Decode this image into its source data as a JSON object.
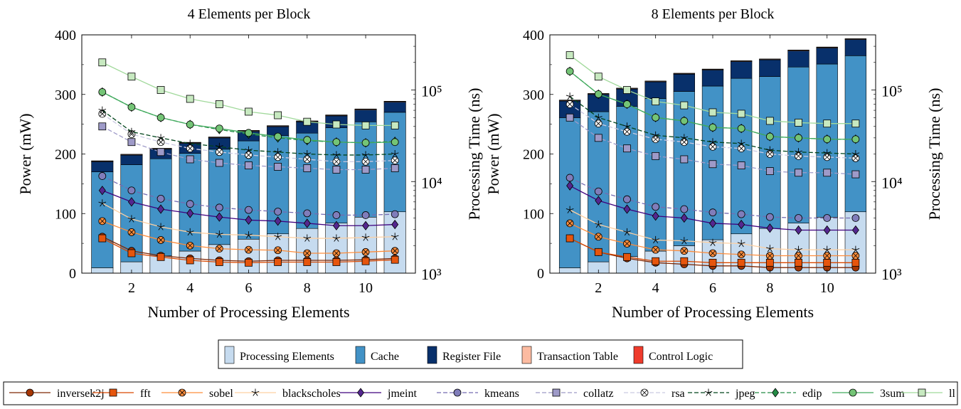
{
  "chart_data": [
    {
      "type": "bar",
      "title": "4 Elements per Block",
      "xlabel": "Number of Processing Elements",
      "ylabel": "Power (mW)",
      "y2label": "Processing Time (ns)",
      "x": [
        1,
        2,
        3,
        4,
        5,
        6,
        7,
        8,
        9,
        10,
        11
      ],
      "xticks": [
        "2",
        "4",
        "6",
        "8",
        "10"
      ],
      "xtick_values": [
        2,
        4,
        6,
        8,
        10
      ],
      "xlim": [
        0.3,
        11.7
      ],
      "ylim": [
        0,
        400
      ],
      "yticks": [
        "0",
        "100",
        "200",
        "300",
        "400"
      ],
      "y2lim_log": [
        1000,
        400000
      ],
      "y2ticks": [
        "10³",
        "10⁴",
        "10⁵"
      ],
      "y2tick_values": [
        1000,
        10000,
        100000
      ],
      "stacked_bars": [
        {
          "name": "Processing Elements",
          "values": [
            9,
            19,
            29,
            37,
            48,
            57,
            66,
            75,
            84,
            94,
            103
          ]
        },
        {
          "name": "Cache",
          "values": [
            161,
            163,
            163,
            164,
            160,
            165,
            165,
            160,
            160,
            160,
            167
          ]
        },
        {
          "name": "Register File",
          "values": [
            17,
            16,
            16,
            17,
            19,
            16,
            15,
            19,
            20,
            20,
            17
          ]
        },
        {
          "name": "Transaction Table",
          "values": [
            1,
            1,
            1,
            1,
            1,
            1,
            1,
            1,
            1,
            1,
            1
          ]
        },
        {
          "name": "Control Logic",
          "values": [
            0.6,
            0.6,
            0.6,
            0.6,
            0.6,
            0.6,
            0.6,
            0.6,
            0.6,
            0.6,
            0.6
          ]
        }
      ],
      "lines": [
        {
          "name": "inversek2j",
          "values": [
            2500,
            1750,
            1550,
            1450,
            1380,
            1350,
            1380,
            1380,
            1380,
            1400,
            1450
          ]
        },
        {
          "name": "fft",
          "values": [
            2400,
            1650,
            1500,
            1380,
            1320,
            1300,
            1320,
            1320,
            1320,
            1350,
            1400
          ]
        },
        {
          "name": "sobel",
          "values": [
            3700,
            2800,
            2300,
            2000,
            1850,
            1800,
            1780,
            1650,
            1650,
            1700,
            1750
          ]
        },
        {
          "name": "blackscholes",
          "values": [
            5800,
            3900,
            3200,
            2800,
            2650,
            2600,
            2500,
            2400,
            2400,
            2450,
            2500
          ]
        },
        {
          "name": "jmeint",
          "values": [
            8000,
            6000,
            5000,
            4500,
            4100,
            3800,
            3700,
            3500,
            3300,
            3300,
            3400
          ]
        },
        {
          "name": "kmeans",
          "values": [
            11500,
            8000,
            6500,
            5700,
            5200,
            4900,
            4700,
            4500,
            4300,
            4300,
            4400
          ]
        },
        {
          "name": "collatz",
          "values": [
            40000,
            27000,
            21000,
            17500,
            16000,
            15000,
            14500,
            14000,
            13500,
            13500,
            14000
          ]
        },
        {
          "name": "rsa",
          "values": [
            55000,
            33000,
            27000,
            23000,
            21000,
            19500,
            18500,
            17500,
            16500,
            16500,
            17000
          ]
        },
        {
          "name": "jpeg",
          "values": [
            60000,
            35000,
            30000,
            26000,
            24000,
            22000,
            21000,
            20000,
            19500,
            19500,
            20000
          ]
        },
        {
          "name": "edip",
          "values": [
            95000,
            65000,
            50000,
            42000,
            37000,
            33000,
            30000,
            28000,
            27000,
            26500,
            27500
          ]
        },
        {
          "name": "3sum",
          "values": [
            95000,
            65000,
            50000,
            42000,
            38000,
            34000,
            31000,
            28500,
            27000,
            26500,
            27000
          ]
        },
        {
          "name": "ll",
          "values": [
            200000,
            140000,
            100000,
            80000,
            70000,
            58000,
            53000,
            45000,
            42000,
            41000,
            41000
          ]
        }
      ]
    },
    {
      "type": "bar",
      "title": "8 Elements per Block",
      "xlabel": "Number of Processing Elements",
      "ylabel": "Power (mW)",
      "y2label": "Processing Time (ns)",
      "x": [
        1,
        2,
        3,
        4,
        5,
        6,
        7,
        8,
        9,
        10,
        11
      ],
      "xticks": [
        "2",
        "4",
        "6",
        "8",
        "10"
      ],
      "xtick_values": [
        2,
        4,
        6,
        8,
        10
      ],
      "xlim": [
        0.3,
        11.7
      ],
      "ylim": [
        0,
        400
      ],
      "yticks": [
        "0",
        "100",
        "200",
        "300",
        "400"
      ],
      "y2lim_log": [
        1000,
        400000
      ],
      "y2ticks": [
        "10³",
        "10⁴",
        "10⁵"
      ],
      "y2tick_values": [
        1000,
        10000,
        100000
      ],
      "stacked_bars": [
        {
          "name": "Processing Elements",
          "values": [
            9,
            19,
            28,
            37,
            46,
            56,
            66,
            75,
            84,
            94,
            103
          ]
        },
        {
          "name": "Cache",
          "values": [
            252,
            252,
            252,
            256,
            259,
            258,
            261,
            255,
            262,
            257,
            262
          ]
        },
        {
          "name": "Register File",
          "values": [
            28,
            29,
            29,
            28,
            29,
            27,
            28,
            28,
            27,
            27,
            27
          ]
        },
        {
          "name": "Transaction Table",
          "values": [
            1,
            1,
            1,
            1,
            1,
            1,
            1,
            1,
            1,
            1,
            1
          ]
        },
        {
          "name": "Control Logic",
          "values": [
            0.6,
            0.6,
            0.6,
            0.6,
            0.6,
            0.6,
            0.6,
            0.6,
            0.6,
            0.6,
            0.6
          ]
        }
      ],
      "lines": [
        {
          "name": "inversek2j",
          "values": [
            2400,
            1700,
            1450,
            1300,
            1250,
            1200,
            1200,
            1150,
            1150,
            1150,
            1150
          ]
        },
        {
          "name": "fft",
          "values": [
            2400,
            1700,
            1500,
            1350,
            1350,
            1300,
            1300,
            1300,
            1300,
            1300,
            1300
          ]
        },
        {
          "name": "sobel",
          "values": [
            3500,
            2500,
            2100,
            1800,
            1750,
            1650,
            1600,
            1550,
            1550,
            1550,
            1550
          ]
        },
        {
          "name": "blackscholes",
          "values": [
            4900,
            3400,
            2800,
            2300,
            2250,
            2150,
            2100,
            1850,
            1800,
            1800,
            1800
          ]
        },
        {
          "name": "jmeint",
          "values": [
            9000,
            6200,
            5000,
            4200,
            4000,
            3500,
            3400,
            3100,
            2950,
            2950,
            2950
          ]
        },
        {
          "name": "kmeans",
          "values": [
            11000,
            7800,
            6400,
            5300,
            5000,
            4600,
            4400,
            4100,
            4000,
            4000,
            4000
          ]
        },
        {
          "name": "collatz",
          "values": [
            50000,
            30000,
            23000,
            19000,
            17500,
            15500,
            15000,
            13000,
            12500,
            12500,
            12000
          ]
        },
        {
          "name": "rsa",
          "values": [
            70000,
            43000,
            35000,
            29000,
            27000,
            24000,
            23000,
            20000,
            19000,
            18500,
            18000
          ]
        },
        {
          "name": "jpeg",
          "values": [
            85000,
            50000,
            40000,
            32000,
            30000,
            27000,
            26000,
            22000,
            21000,
            20500,
            20000
          ]
        },
        {
          "name": "edip",
          "values": [
            160000,
            90000,
            70000,
            50000,
            46000,
            39000,
            38000,
            31000,
            30000,
            29000,
            29000
          ]
        },
        {
          "name": "3sum",
          "values": [
            160000,
            90000,
            70000,
            50000,
            46000,
            39000,
            38000,
            31000,
            30000,
            29000,
            29000
          ]
        },
        {
          "name": "ll",
          "values": [
            240000,
            140000,
            100000,
            75000,
            68000,
            57000,
            55000,
            46000,
            44000,
            43000,
            43000
          ]
        }
      ]
    }
  ],
  "legend_bars": [
    {
      "name": "Processing Elements",
      "color": "#c6dbef"
    },
    {
      "name": "Cache",
      "color": "#4292c6"
    },
    {
      "name": "Register File",
      "color": "#08306b"
    },
    {
      "name": "Transaction Table",
      "color": "#fcbba1"
    },
    {
      "name": "Control Logic",
      "color": "#ef3b2c"
    }
  ],
  "legend_lines": [
    {
      "name": "inversek2j",
      "color": "#7f2704",
      "fill": "#a63603",
      "marker": "circle",
      "dash": ""
    },
    {
      "name": "fft",
      "color": "#d94801",
      "fill": "#e6550d",
      "marker": "square",
      "dash": ""
    },
    {
      "name": "sobel",
      "color": "#fd8d3c",
      "fill": "#fd8d3c",
      "marker": "otimes",
      "dash": ""
    },
    {
      "name": "blackscholes",
      "color": "#fdd0a2",
      "fill": "#000000",
      "marker": "star",
      "dash": ""
    },
    {
      "name": "jmeint",
      "color": "#3f007d",
      "fill": "#54278f",
      "marker": "diamond",
      "dash": ""
    },
    {
      "name": "kmeans",
      "color": "#756bb1",
      "fill": "#807dba",
      "marker": "circle",
      "dash": "6,3"
    },
    {
      "name": "collatz",
      "color": "#9e9ac8",
      "fill": "#9e9ac8",
      "marker": "square",
      "dash": "6,3"
    },
    {
      "name": "rsa",
      "color": "#cbc9e2",
      "fill": "#ffffff",
      "marker": "otimes",
      "dash": "6,3"
    },
    {
      "name": "jpeg",
      "color": "#00441b",
      "fill": "#000000",
      "marker": "star",
      "dash": "6,3"
    },
    {
      "name": "edip",
      "color": "#238b45",
      "fill": "#238b45",
      "marker": "diamond",
      "dash": "6,3"
    },
    {
      "name": "3sum",
      "color": "#41ab5d",
      "fill": "#74c476",
      "marker": "circle",
      "dash": ""
    },
    {
      "name": "ll",
      "color": "#a1d99b",
      "fill": "#c7e9c0",
      "marker": "square",
      "dash": ""
    }
  ]
}
